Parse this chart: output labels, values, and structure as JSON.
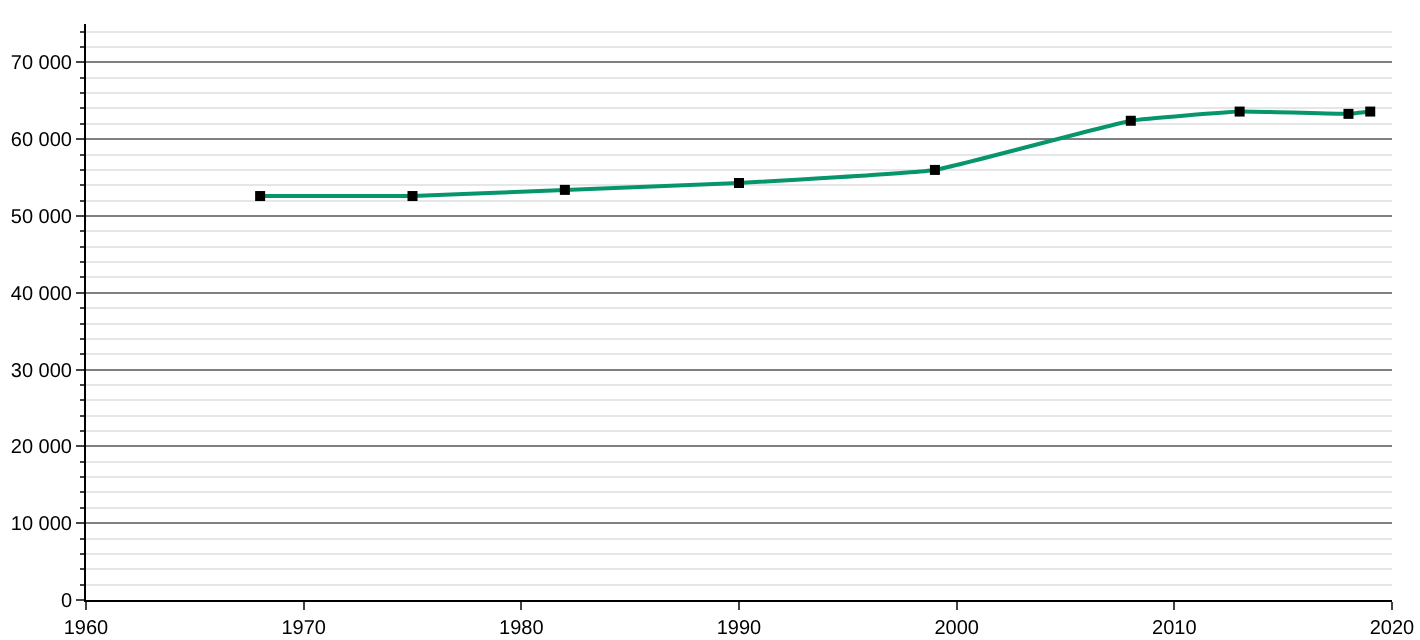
{
  "chart_data": {
    "type": "line",
    "x": [
      1968,
      1975,
      1982,
      1990,
      1999,
      2008,
      2013,
      2018,
      2019
    ],
    "series": [
      {
        "color": "#07956b",
        "values": [
          52600,
          52600,
          53400,
          54300,
          56000,
          62400,
          63600,
          63300,
          63600
        ]
      }
    ],
    "xlim": [
      1960,
      2020
    ],
    "xticks": [
      1960,
      1970,
      1980,
      1990,
      2000,
      2010,
      2020
    ],
    "ylim": [
      0,
      75000
    ],
    "yticks": [
      0,
      {
        "value": 10000,
        "label": "10 000"
      },
      {
        "value": 20000,
        "label": "20 000"
      },
      {
        "value": 30000,
        "label": "30 000"
      },
      {
        "value": 40000,
        "label": "40 000"
      },
      {
        "value": 50000,
        "label": "50 000"
      },
      {
        "value": 60000,
        "label": "60 000"
      },
      {
        "value": 70000,
        "label": "70 000"
      }
    ],
    "grid": "y",
    "marker": "square",
    "line_style": "solid"
  }
}
